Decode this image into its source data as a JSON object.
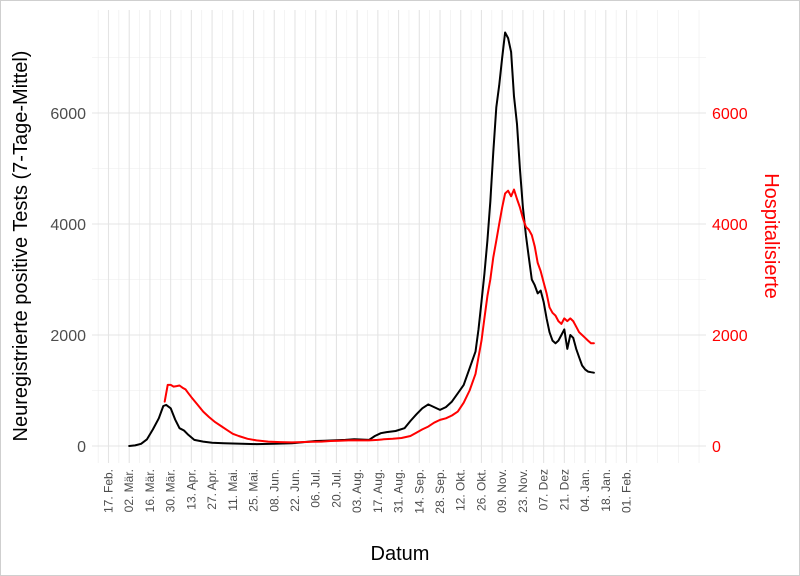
{
  "chart_data": {
    "type": "line",
    "xlabel": "Datum",
    "ylabel_left": "Neuregistrierte positive Tests (7-Tage-Mittel)",
    "ylabel_right": "Hospitalisierte",
    "ylim": [
      -300,
      7600
    ],
    "y_ticks": [
      0,
      2000,
      4000,
      6000
    ],
    "y_tick_labels": [
      "0",
      "2000",
      "4000",
      "6000"
    ],
    "x_range_days": [
      -7,
      330
    ],
    "x_ticks": [
      {
        "day": 0,
        "label": "17. Feb."
      },
      {
        "day": 14,
        "label": "02. Mär."
      },
      {
        "day": 28,
        "label": "16. Mär."
      },
      {
        "day": 42,
        "label": "30. Mär."
      },
      {
        "day": 56,
        "label": "13. Apr."
      },
      {
        "day": 70,
        "label": "27. Apr."
      },
      {
        "day": 84,
        "label": "11. Mai."
      },
      {
        "day": 98,
        "label": "25. Mai."
      },
      {
        "day": 112,
        "label": "08. Jun."
      },
      {
        "day": 126,
        "label": "22. Jun."
      },
      {
        "day": 140,
        "label": "06. Jul."
      },
      {
        "day": 154,
        "label": "20. Jul."
      },
      {
        "day": 168,
        "label": "03. Aug."
      },
      {
        "day": 182,
        "label": "17. Aug."
      },
      {
        "day": 196,
        "label": "31. Aug."
      },
      {
        "day": 210,
        "label": "14. Sep."
      },
      {
        "day": 224,
        "label": "28. Sep."
      },
      {
        "day": 238,
        "label": "12. Okt."
      },
      {
        "day": 252,
        "label": "26. Okt."
      },
      {
        "day": 266,
        "label": "09. Nov."
      },
      {
        "day": 280,
        "label": "23. Nov."
      },
      {
        "day": 294,
        "label": "07. Dez"
      },
      {
        "day": 308,
        "label": "21. Dez"
      },
      {
        "day": 322,
        "label": "04. Jan."
      },
      {
        "day": 336,
        "label": "18. Jan."
      },
      {
        "day": 350,
        "label": "01. Feb."
      }
    ],
    "grid": true,
    "series": [
      {
        "color": "#000000",
        "axis": "left",
        "points": [
          [
            14,
            0
          ],
          [
            18,
            10
          ],
          [
            22,
            40
          ],
          [
            26,
            120
          ],
          [
            30,
            300
          ],
          [
            34,
            500
          ],
          [
            37,
            720
          ],
          [
            39,
            740
          ],
          [
            42,
            680
          ],
          [
            45,
            480
          ],
          [
            48,
            320
          ],
          [
            51,
            280
          ],
          [
            54,
            200
          ],
          [
            58,
            110
          ],
          [
            64,
            80
          ],
          [
            70,
            60
          ],
          [
            78,
            50
          ],
          [
            84,
            45
          ],
          [
            90,
            40
          ],
          [
            100,
            35
          ],
          [
            112,
            40
          ],
          [
            124,
            50
          ],
          [
            132,
            70
          ],
          [
            140,
            90
          ],
          [
            146,
            95
          ],
          [
            152,
            100
          ],
          [
            160,
            110
          ],
          [
            166,
            120
          ],
          [
            172,
            115
          ],
          [
            176,
            110
          ],
          [
            180,
            180
          ],
          [
            184,
            230
          ],
          [
            188,
            250
          ],
          [
            194,
            270
          ],
          [
            200,
            320
          ],
          [
            204,
            450
          ],
          [
            208,
            570
          ],
          [
            212,
            680
          ],
          [
            216,
            750
          ],
          [
            220,
            700
          ],
          [
            224,
            650
          ],
          [
            228,
            700
          ],
          [
            232,
            800
          ],
          [
            236,
            950
          ],
          [
            240,
            1100
          ],
          [
            244,
            1400
          ],
          [
            248,
            1700
          ],
          [
            250,
            2100
          ],
          [
            252,
            2600
          ],
          [
            254,
            3100
          ],
          [
            256,
            3700
          ],
          [
            258,
            4400
          ],
          [
            260,
            5300
          ],
          [
            262,
            6100
          ],
          [
            264,
            6500
          ],
          [
            266,
            7000
          ],
          [
            268,
            7450
          ],
          [
            270,
            7350
          ],
          [
            272,
            7100
          ],
          [
            274,
            6300
          ],
          [
            276,
            5800
          ],
          [
            278,
            5000
          ],
          [
            280,
            4300
          ],
          [
            282,
            3800
          ],
          [
            284,
            3400
          ],
          [
            286,
            3000
          ],
          [
            288,
            2900
          ],
          [
            290,
            2750
          ],
          [
            292,
            2800
          ],
          [
            294,
            2600
          ],
          [
            296,
            2300
          ],
          [
            298,
            2050
          ],
          [
            300,
            1900
          ],
          [
            302,
            1850
          ],
          [
            304,
            1900
          ],
          [
            306,
            2000
          ],
          [
            308,
            2100
          ],
          [
            310,
            1750
          ],
          [
            312,
            2000
          ],
          [
            314,
            1950
          ],
          [
            316,
            1750
          ],
          [
            318,
            1600
          ],
          [
            320,
            1450
          ],
          [
            322,
            1380
          ],
          [
            324,
            1340
          ],
          [
            326,
            1330
          ],
          [
            328,
            1320
          ]
        ]
      },
      {
        "color": "#ff0000",
        "axis": "right",
        "points": [
          [
            38,
            800
          ],
          [
            40,
            1100
          ],
          [
            42,
            1100
          ],
          [
            44,
            1070
          ],
          [
            46,
            1080
          ],
          [
            48,
            1090
          ],
          [
            50,
            1050
          ],
          [
            52,
            1020
          ],
          [
            54,
            950
          ],
          [
            56,
            880
          ],
          [
            60,
            750
          ],
          [
            64,
            620
          ],
          [
            68,
            520
          ],
          [
            72,
            430
          ],
          [
            76,
            360
          ],
          [
            80,
            290
          ],
          [
            84,
            220
          ],
          [
            88,
            180
          ],
          [
            94,
            130
          ],
          [
            100,
            100
          ],
          [
            108,
            80
          ],
          [
            116,
            70
          ],
          [
            124,
            65
          ],
          [
            130,
            70
          ],
          [
            138,
            75
          ],
          [
            144,
            80
          ],
          [
            150,
            90
          ],
          [
            156,
            95
          ],
          [
            162,
            100
          ],
          [
            166,
            105
          ],
          [
            170,
            100
          ],
          [
            176,
            100
          ],
          [
            182,
            110
          ],
          [
            186,
            120
          ],
          [
            192,
            130
          ],
          [
            198,
            145
          ],
          [
            204,
            180
          ],
          [
            208,
            240
          ],
          [
            212,
            300
          ],
          [
            216,
            350
          ],
          [
            220,
            420
          ],
          [
            224,
            470
          ],
          [
            228,
            500
          ],
          [
            232,
            550
          ],
          [
            236,
            620
          ],
          [
            240,
            780
          ],
          [
            244,
            1000
          ],
          [
            248,
            1300
          ],
          [
            250,
            1600
          ],
          [
            252,
            1900
          ],
          [
            254,
            2300
          ],
          [
            256,
            2700
          ],
          [
            258,
            3000
          ],
          [
            260,
            3400
          ],
          [
            262,
            3700
          ],
          [
            264,
            4000
          ],
          [
            266,
            4300
          ],
          [
            268,
            4550
          ],
          [
            270,
            4600
          ],
          [
            272,
            4500
          ],
          [
            274,
            4620
          ],
          [
            276,
            4450
          ],
          [
            278,
            4300
          ],
          [
            280,
            4100
          ],
          [
            282,
            3950
          ],
          [
            284,
            3900
          ],
          [
            286,
            3800
          ],
          [
            288,
            3600
          ],
          [
            290,
            3300
          ],
          [
            292,
            3150
          ],
          [
            294,
            2950
          ],
          [
            296,
            2750
          ],
          [
            298,
            2500
          ],
          [
            300,
            2400
          ],
          [
            302,
            2350
          ],
          [
            304,
            2250
          ],
          [
            306,
            2200
          ],
          [
            308,
            2300
          ],
          [
            310,
            2250
          ],
          [
            312,
            2300
          ],
          [
            314,
            2250
          ],
          [
            316,
            2150
          ],
          [
            318,
            2050
          ],
          [
            320,
            2000
          ],
          [
            322,
            1950
          ],
          [
            324,
            1900
          ],
          [
            326,
            1850
          ],
          [
            328,
            1850
          ]
        ]
      }
    ]
  }
}
